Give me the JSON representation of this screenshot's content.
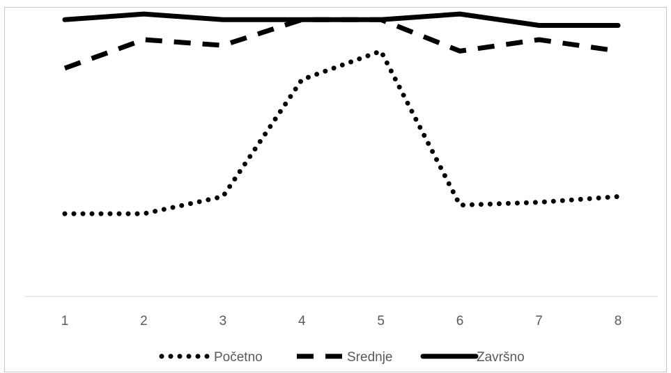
{
  "chart_data": {
    "type": "line",
    "title": "",
    "xlabel": "",
    "ylabel": "",
    "categories": [
      "1",
      "2",
      "3",
      "4",
      "5",
      "6",
      "7",
      "8"
    ],
    "ylim": [
      0,
      100
    ],
    "grid": false,
    "legend_position": "bottom",
    "series": [
      {
        "name": "Početno",
        "style": "dotted",
        "color": "#000000",
        "values": [
          29,
          29,
          35,
          76,
          86,
          32,
          33,
          35
        ]
      },
      {
        "name": "Srednje",
        "style": "dashed",
        "color": "#000000",
        "values": [
          80,
          90,
          88,
          97,
          97,
          86,
          90,
          86
        ]
      },
      {
        "name": "Završno",
        "style": "solid",
        "color": "#000000",
        "values": [
          97,
          99,
          97,
          97,
          97,
          99,
          95,
          95
        ]
      }
    ]
  }
}
